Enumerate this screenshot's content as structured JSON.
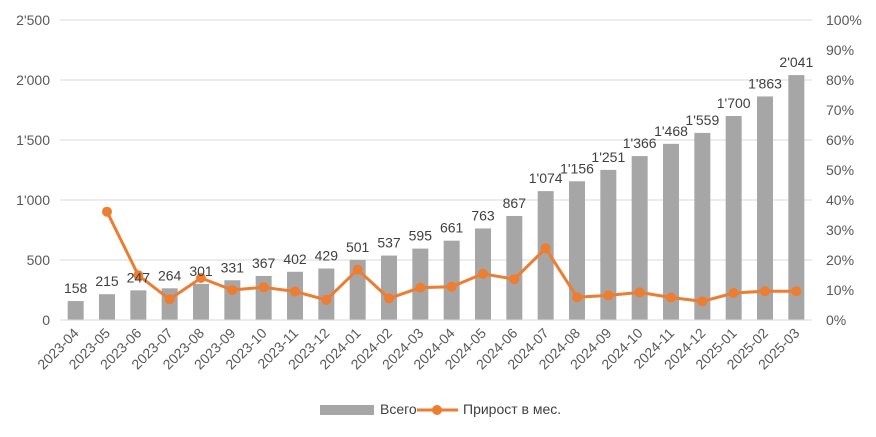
{
  "chart_data": {
    "type": "bar",
    "categories": [
      "2023-04",
      "2023-05",
      "2023-06",
      "2023-07",
      "2023-08",
      "2023-09",
      "2023-10",
      "2023-11",
      "2023-12",
      "2024-01",
      "2024-02",
      "2024-03",
      "2024-04",
      "2024-05",
      "2024-06",
      "2024-07",
      "2024-08",
      "2024-09",
      "2024-10",
      "2024-11",
      "2024-12",
      "2025-01",
      "2025-02",
      "2025-03"
    ],
    "series": [
      {
        "name": "Всего",
        "type": "bar",
        "axis": "left",
        "color": "#a6a6a6",
        "values": [
          158,
          215,
          247,
          264,
          301,
          331,
          367,
          402,
          429,
          501,
          537,
          595,
          661,
          763,
          867,
          1074,
          1156,
          1251,
          1366,
          1468,
          1559,
          1700,
          1863,
          2041
        ],
        "labels": [
          "158",
          "215",
          "247",
          "264",
          "301",
          "331",
          "367",
          "402",
          "429",
          "501",
          "537",
          "595",
          "661",
          "763",
          "867",
          "1'074",
          "1'156",
          "1'251",
          "1'366",
          "1'468",
          "1'559",
          "1'700",
          "1'863",
          "2'041"
        ]
      },
      {
        "name": "Прирост в мес.",
        "type": "line",
        "axis": "right",
        "color": "#ed7d31",
        "values": [
          null,
          36.1,
          14.9,
          6.9,
          14.0,
          10.0,
          10.9,
          9.5,
          6.7,
          16.8,
          7.2,
          10.8,
          11.1,
          15.4,
          13.6,
          23.9,
          7.6,
          8.2,
          9.2,
          7.5,
          6.2,
          9.0,
          9.6,
          9.6
        ]
      }
    ],
    "y_left": {
      "ylim": [
        0,
        2500
      ],
      "ticks": [
        0,
        500,
        1000,
        1500,
        2000,
        2500
      ],
      "tick_labels": [
        "0",
        "500",
        "1'000",
        "1'500",
        "2'000",
        "2'500"
      ]
    },
    "y_right": {
      "ylim": [
        0,
        100
      ],
      "ticks": [
        0,
        10,
        20,
        30,
        40,
        50,
        60,
        70,
        80,
        90,
        100
      ],
      "tick_labels": [
        "0%",
        "10%",
        "20%",
        "30%",
        "40%",
        "50%",
        "60%",
        "70%",
        "80%",
        "90%",
        "100%"
      ]
    },
    "grid": true,
    "legend_position": "bottom"
  }
}
